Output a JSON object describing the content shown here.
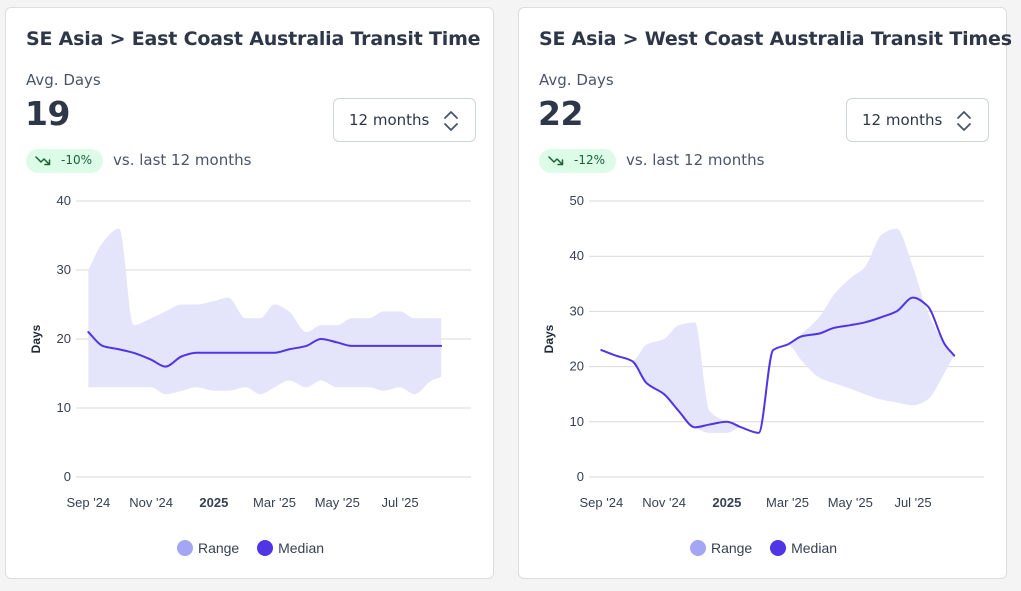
{
  "colors": {
    "range_fill": "#e4e4fb",
    "median_line": "#4f35e6",
    "legend_range": "#a3a6f5",
    "legend_median": "#4f35e6",
    "grid": "#d9d9d9",
    "badge_bg": "#dcfce7",
    "badge_text": "#166534"
  },
  "icons": {
    "trend": "trending-down-icon",
    "select": "chevron-up-down-icon"
  },
  "cards": [
    {
      "title": "SE Asia > East Coast Australia Transit Time",
      "metric_label": "Avg. Days",
      "metric_value": "19",
      "period_select": "12 months",
      "change_badge": "-10%",
      "change_text": "vs. last 12 months",
      "legend": {
        "range": "Range",
        "median": "Median"
      }
    },
    {
      "title": "SE Asia > West Coast Australia Transit Times",
      "metric_label": "Avg. Days",
      "metric_value": "22",
      "period_select": "12 months",
      "change_badge": "-12%",
      "change_text": "vs. last 12 months",
      "legend": {
        "range": "Range",
        "median": "Median"
      }
    }
  ],
  "chart_data": [
    {
      "type": "area",
      "title": "",
      "xlabel": "",
      "ylabel": "Days",
      "ylim": [
        0,
        40
      ],
      "yticks": [
        0,
        10,
        20,
        30,
        40
      ],
      "xticks": [
        {
          "x": "2024-09-01",
          "label": "Sep '24",
          "bold": false
        },
        {
          "x": "2024-11-01",
          "label": "Nov '24",
          "bold": false
        },
        {
          "x": "2025-01-01",
          "label": "2025",
          "bold": true
        },
        {
          "x": "2025-03-01",
          "label": "Mar '25",
          "bold": false
        },
        {
          "x": "2025-05-01",
          "label": "May '25",
          "bold": false
        },
        {
          "x": "2025-07-01",
          "label": "Jul '25",
          "bold": false
        }
      ],
      "xlim": [
        "2024-08-20",
        "2025-09-08"
      ],
      "grid": true,
      "legend_position": "bottom",
      "x": [
        "2024-09-01",
        "2024-09-15",
        "2024-10-01",
        "2024-10-15",
        "2024-11-01",
        "2024-11-15",
        "2024-12-01",
        "2024-12-15",
        "2025-01-01",
        "2025-01-15",
        "2025-02-01",
        "2025-02-15",
        "2025-03-01",
        "2025-03-15",
        "2025-04-01",
        "2025-04-15",
        "2025-05-01",
        "2025-05-15",
        "2025-06-01",
        "2025-06-15",
        "2025-07-01",
        "2025-07-15",
        "2025-08-01",
        "2025-08-10"
      ],
      "series": [
        {
          "name": "Median",
          "values": [
            21,
            19,
            18.5,
            18,
            17,
            16,
            17.5,
            18,
            18,
            18,
            18,
            18,
            18,
            18.5,
            19,
            20,
            19.5,
            19,
            19,
            19,
            19,
            19,
            19,
            19
          ]
        },
        {
          "name": "Range",
          "lower": [
            13,
            13,
            13,
            13,
            13,
            12,
            12.5,
            13,
            12.5,
            12.5,
            13,
            12,
            13,
            14,
            13,
            14,
            13,
            13,
            13,
            12.5,
            13,
            12,
            14,
            14.5
          ],
          "upper": [
            30,
            34,
            36,
            22,
            23,
            24,
            25,
            25,
            25.5,
            26,
            23,
            23,
            25,
            24,
            21,
            22,
            22,
            23,
            23,
            24,
            24,
            23,
            23,
            23
          ]
        }
      ]
    },
    {
      "type": "area",
      "title": "",
      "xlabel": "",
      "ylabel": "Days",
      "ylim": [
        0,
        50
      ],
      "yticks": [
        0,
        10,
        20,
        30,
        40,
        50
      ],
      "xticks": [
        {
          "x": "2024-09-01",
          "label": "Sep '24",
          "bold": false
        },
        {
          "x": "2024-11-01",
          "label": "Nov '24",
          "bold": false
        },
        {
          "x": "2025-01-01",
          "label": "2025",
          "bold": true
        },
        {
          "x": "2025-03-01",
          "label": "Mar '25",
          "bold": false
        },
        {
          "x": "2025-05-01",
          "label": "May '25",
          "bold": false
        },
        {
          "x": "2025-07-01",
          "label": "Jul '25",
          "bold": false
        }
      ],
      "xlim": [
        "2024-08-20",
        "2025-09-08"
      ],
      "grid": true,
      "legend_position": "bottom",
      "x": [
        "2024-09-01",
        "2024-09-15",
        "2024-10-01",
        "2024-10-15",
        "2024-11-01",
        "2024-11-15",
        "2024-12-01",
        "2024-12-15",
        "2025-01-01",
        "2025-01-15",
        "2025-02-01",
        "2025-02-15",
        "2025-03-01",
        "2025-03-15",
        "2025-04-01",
        "2025-04-15",
        "2025-05-01",
        "2025-05-15",
        "2025-06-01",
        "2025-06-15",
        "2025-07-01",
        "2025-07-15",
        "2025-08-01",
        "2025-08-10"
      ],
      "series": [
        {
          "name": "Median",
          "values": [
            23,
            22,
            21,
            17,
            15,
            12,
            9,
            9.5,
            10,
            9,
            8,
            23,
            24,
            25.5,
            26,
            27,
            27.5,
            28,
            29,
            30,
            32.5,
            31,
            24,
            22
          ]
        },
        {
          "name": "Range",
          "lower": [
            23,
            22,
            21,
            17,
            15,
            12,
            9,
            8,
            8,
            9,
            8,
            23,
            24,
            21,
            18,
            17,
            16,
            15,
            14,
            13.5,
            13,
            14,
            19,
            22
          ],
          "upper": [
            23,
            22,
            21,
            24,
            25,
            27.5,
            28,
            12,
            10,
            9,
            8,
            23,
            24,
            26,
            29,
            33,
            36,
            38,
            44,
            45,
            38,
            30,
            24,
            22
          ]
        }
      ]
    }
  ]
}
